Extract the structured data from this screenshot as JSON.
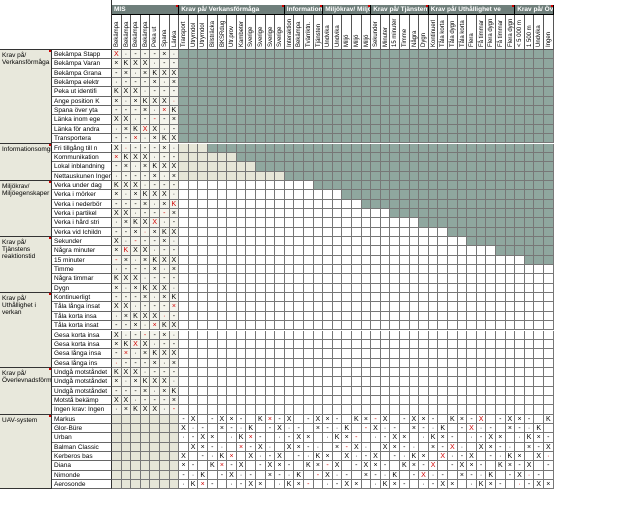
{
  "col_groups": [
    {
      "label": "MIS",
      "span": 7
    },
    {
      "label": "Krav på/ Verkansförmåga",
      "span": 11
    },
    {
      "label": "Information",
      "span": 4
    },
    {
      "label": "Miljökrav/ Miljöe",
      "span": 5
    },
    {
      "label": "Krav på/ Tjänsten",
      "span": 6
    },
    {
      "label": "Krav på/ Uthållighet ve",
      "span": 9
    },
    {
      "label": "Krav på/ Överl",
      "span": 4
    }
  ],
  "col_labels": [
    "Bekämpa",
    "Bekämpa",
    "Bekämpa",
    "Bekämpa",
    "Peka ut",
    "Spana",
    "Länka",
    "Transport",
    "Utrymdol",
    "Utrymdol",
    "Bilsträcka",
    "BKSRdug",
    "Utr.prov",
    "Kambeter",
    "Sverige",
    "Sverige",
    "Sverige",
    "Sverige",
    "Interaktion",
    "Bekämpa",
    "Tvärriktn.",
    "Tjänsten",
    "Undvika",
    "Undvika",
    "Miljö",
    "Miljö",
    "Miljö",
    "Sekunder",
    "Minuter",
    "15 minuter",
    "Timme",
    "Några",
    "Dygn",
    "Kontinuerl",
    "Tåla korta",
    "Tåla dygn",
    "Tåla korta",
    "Flera",
    "Få timmar",
    "Flera dygn",
    "Få timmar",
    "Flera dygn",
    "< 5 000 m",
    "1 500 m",
    "Undvika",
    "Ingen"
  ],
  "row_groups": [
    {
      "label": "Krav på/ Verkansförmåga",
      "rows": [
        "Bekämpa Stapp",
        "Bekämpa Varan",
        "Bekämpa Grana",
        "Bekämpa elektr",
        "Peka ut identifi",
        "Ange position K",
        "Spana över yta",
        "Länka inom ege",
        "Länka för andra",
        "Transportera"
      ]
    },
    {
      "label": "Informationsomgivning",
      "rows": [
        "Fri tillgång till n",
        "Kommunikation",
        "Lokal inblandning",
        "Nettauskunen Ingen"
      ]
    },
    {
      "label": "Miljökrav/ Miljöegenskaper",
      "rows": [
        "Verka under dag",
        "Verka i mörker",
        "Verka i nederbör",
        "Verka i partikel",
        "Verka i hård stri",
        "Verka vid Ichildn"
      ]
    },
    {
      "label": "Krav på/ Tjänstens reaktionstid",
      "rows": [
        "Sekunder",
        "Några minuter",
        "15 minuter",
        "Timme",
        "Några timmar",
        "Dygn"
      ]
    },
    {
      "label": "Krav på/ Uthållighet i verkan",
      "rows": [
        "Kontinuerligt",
        "Tåla långa insat",
        "Tåla korta insa",
        "Tåla korta insat",
        "Gesa korta insa",
        "Gesa korta insa",
        "Gesa långa insa",
        "Gesa långa ins"
      ]
    },
    {
      "label": "Krav på/ Överlevnadsförmåga",
      "rows": [
        "Undgå motståndet",
        "Undgå motståndet",
        "Undgå motståndet",
        "Motstå bekämp",
        "Ingen krav: Ingen"
      ]
    },
    {
      "label": "UAV-system",
      "rows": [
        "Markus",
        "Glor-Büre",
        "Urban",
        "Balman Classic",
        "Kerberos bas",
        "Diana",
        "Nimonde",
        "Aerosonde"
      ]
    }
  ]
}
